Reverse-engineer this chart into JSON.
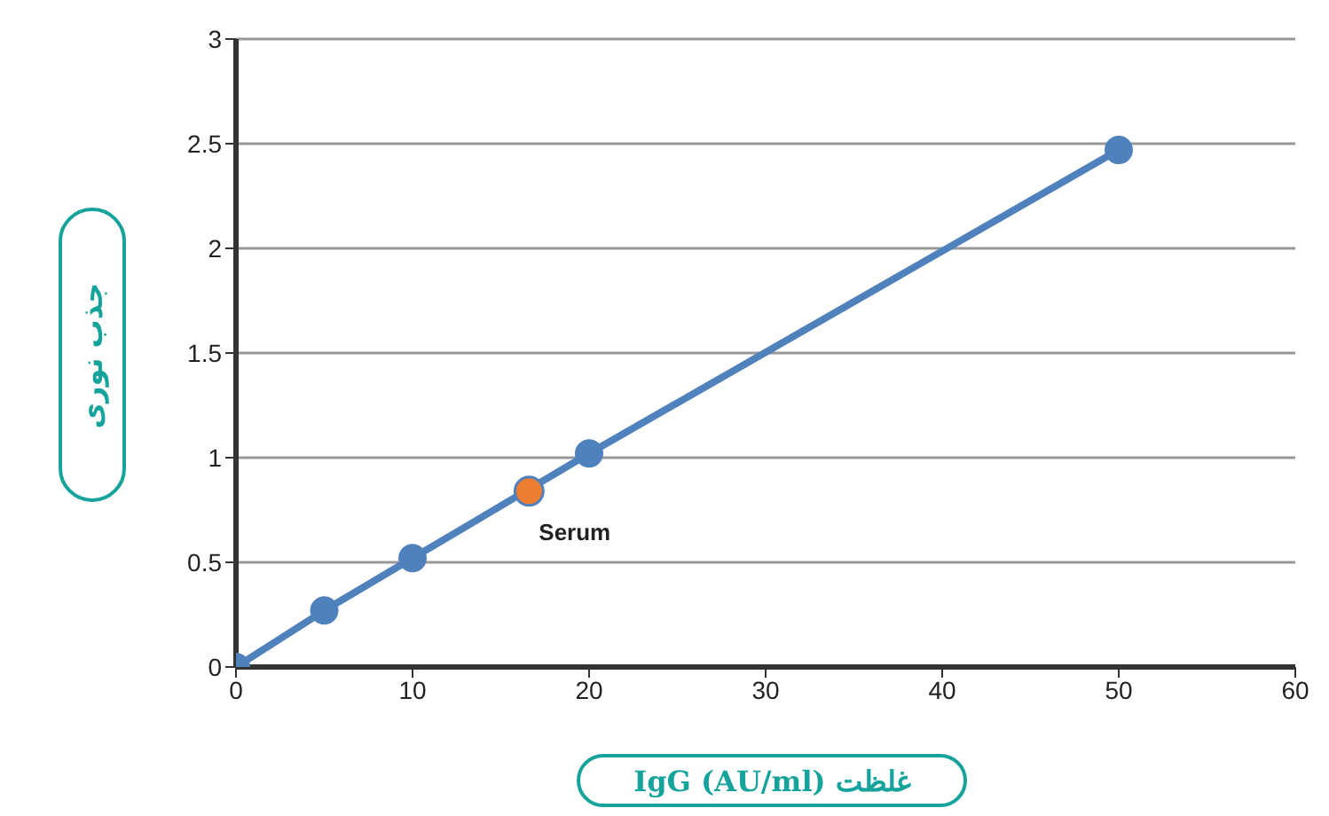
{
  "chart_data": {
    "type": "line",
    "xlabel": "غلظت IgG (AU/ml)",
    "ylabel": "جذب نوری",
    "x": [
      0,
      5,
      10,
      20,
      50
    ],
    "series": [
      {
        "color": "#4f81bd",
        "values": [
          0,
          0.27,
          0.52,
          1.02,
          2.47
        ]
      },
      {
        "type": "scatter",
        "name": "Serum",
        "color": "#ed7d31",
        "x": [
          16.6
        ],
        "values": [
          0.84
        ]
      }
    ],
    "xlim": [
      0,
      60
    ],
    "xticks": [
      0,
      10,
      20,
      30,
      40,
      50,
      60
    ],
    "ylim": [
      0,
      3
    ],
    "yticks": [
      0,
      0.5,
      1,
      1.5,
      2,
      2.5,
      3
    ],
    "grid": "y",
    "legend": false,
    "marker": "circle",
    "line_style": "solid"
  }
}
